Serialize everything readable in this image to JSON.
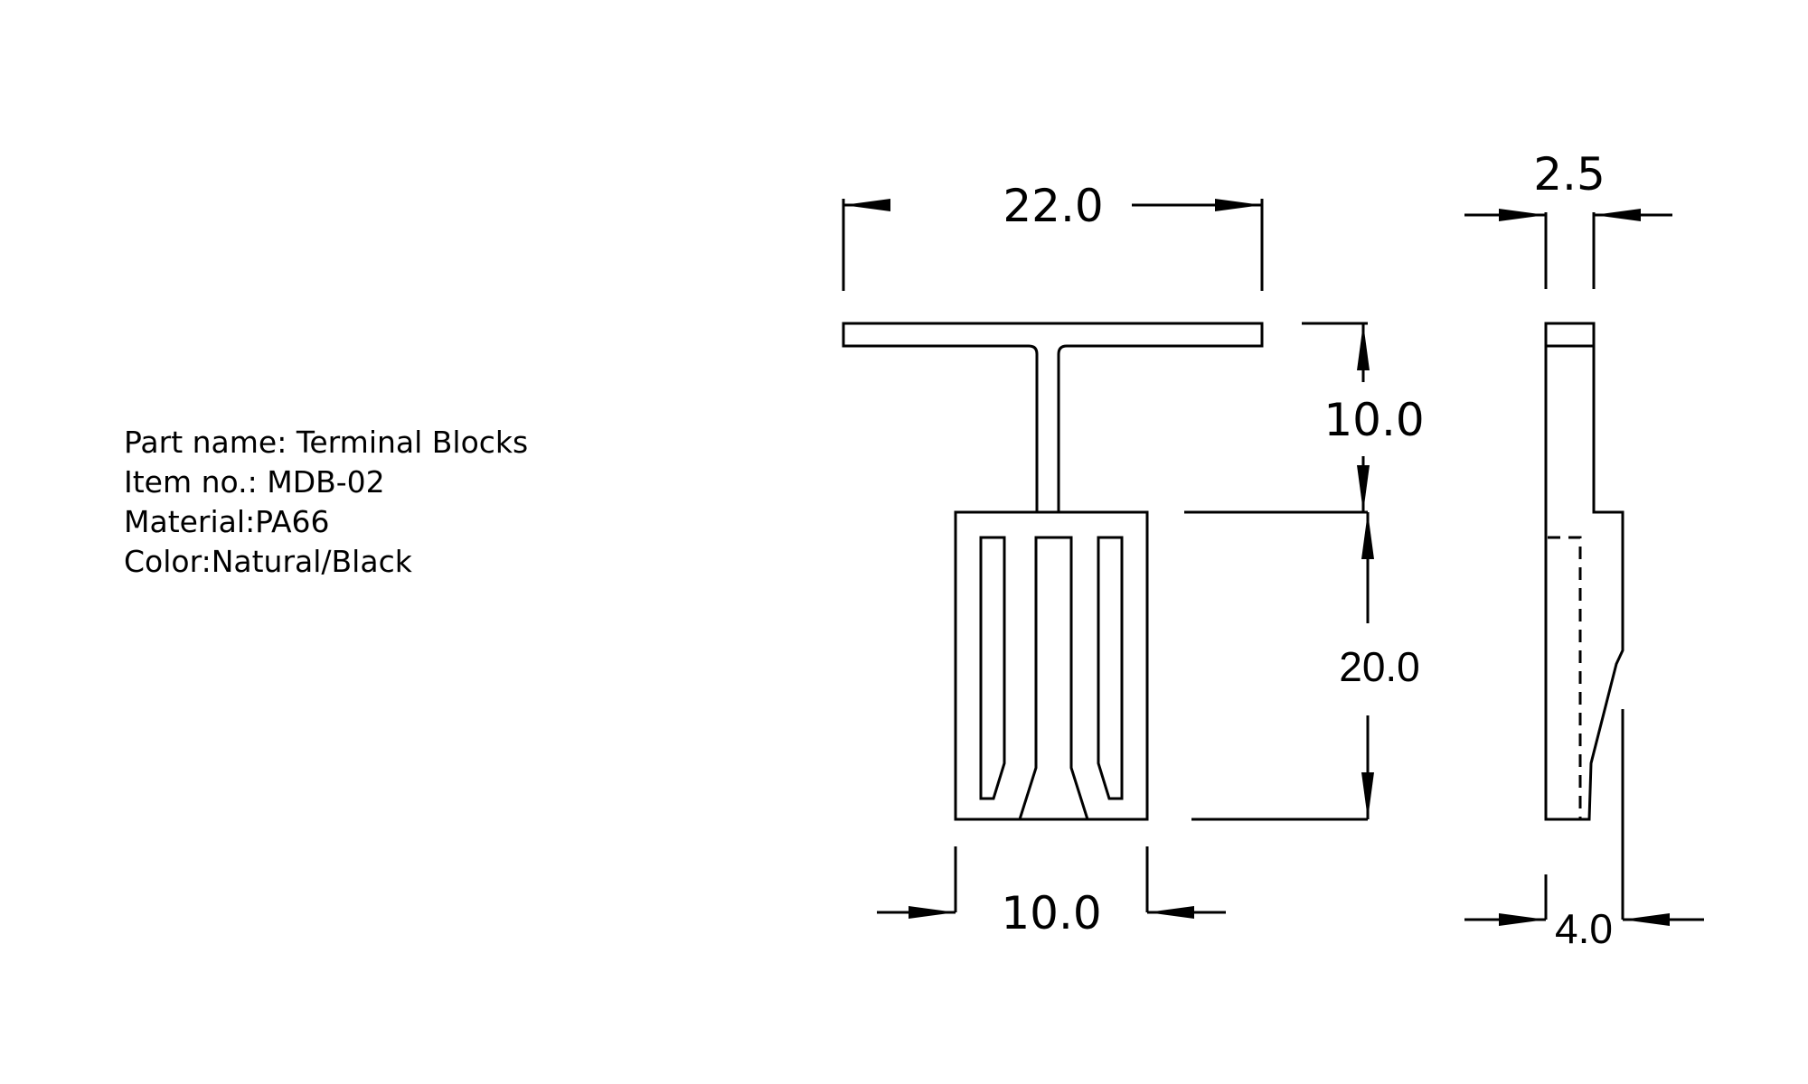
{
  "spec": {
    "part_name": "Part name: Terminal Blocks",
    "item_no": "Item no.: MDB-02",
    "material": "Material:PA66",
    "color": "Color:Natural/Black"
  },
  "dimensions": {
    "overall_width": "22.0",
    "head_height": "10.0",
    "body_height": "20.0",
    "body_width": "10.0",
    "head_thickness": "2.5",
    "body_thickness": "4.0"
  }
}
